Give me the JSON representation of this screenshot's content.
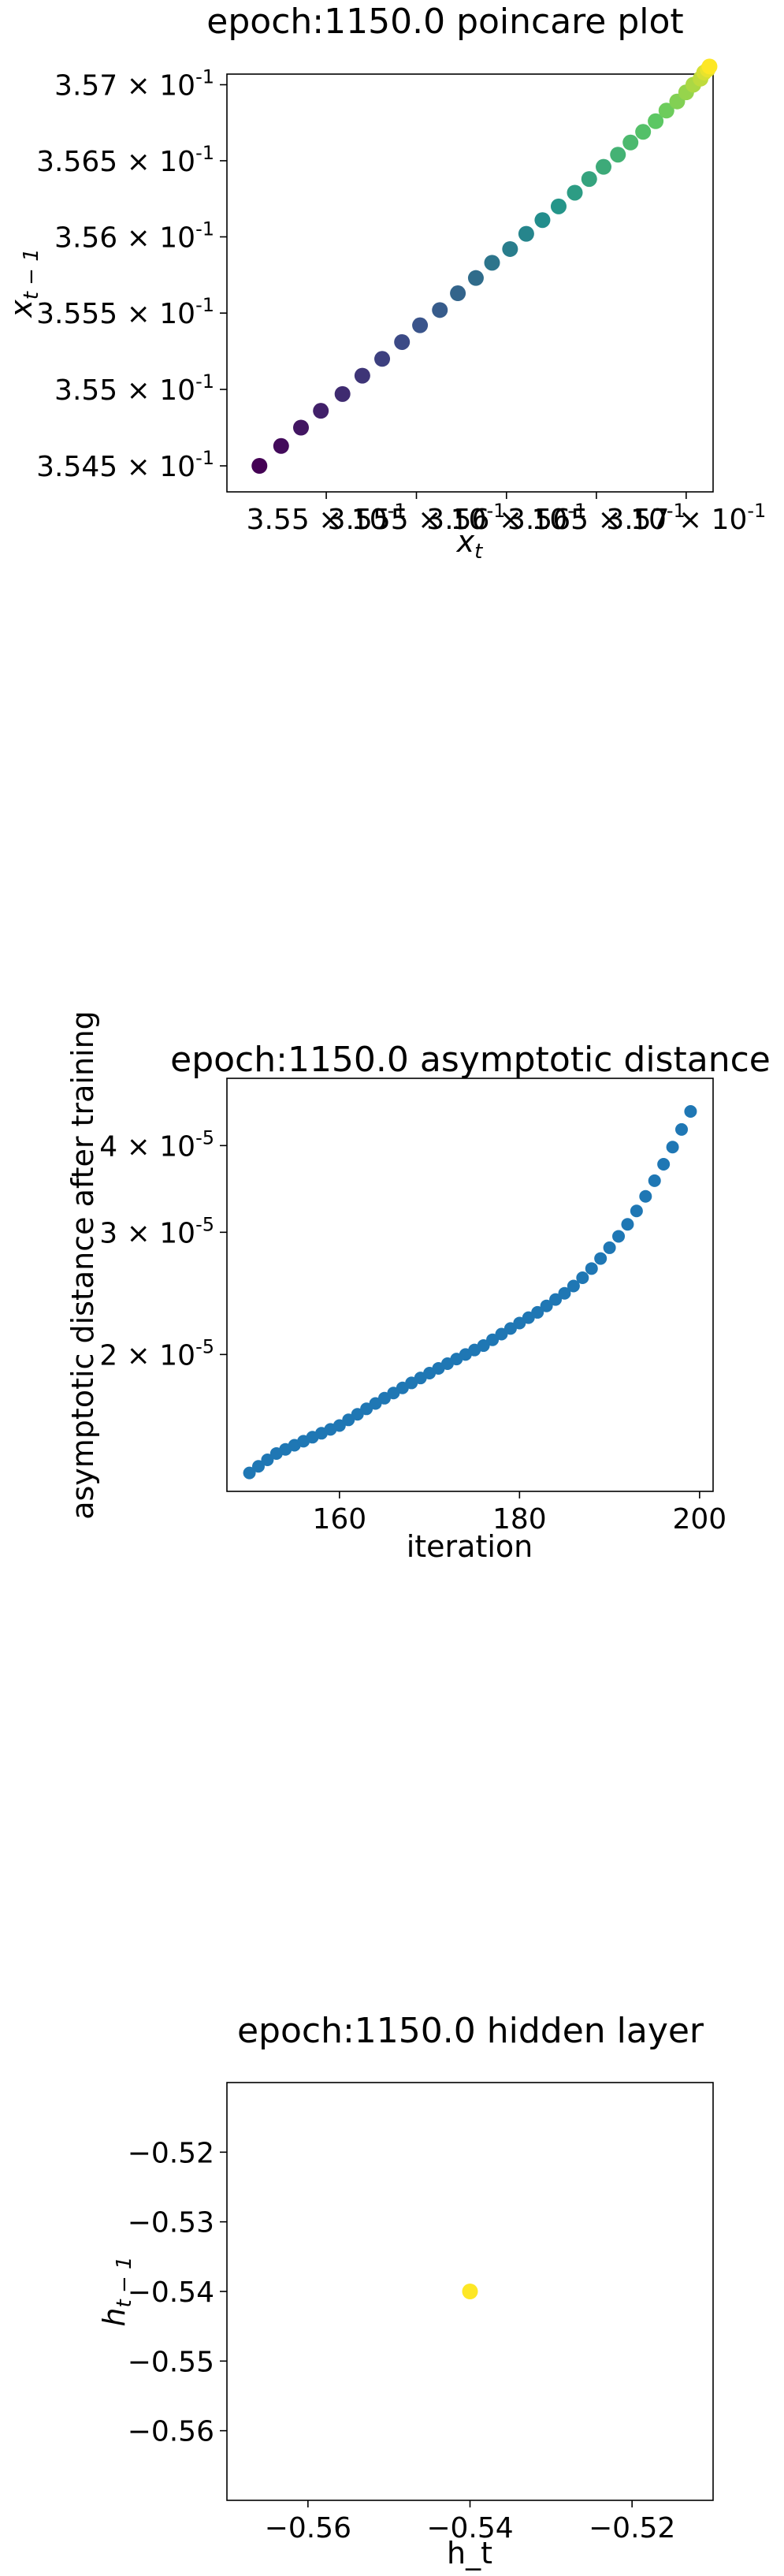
{
  "chart_data": [
    {
      "type": "scatter",
      "title": "epoch:1150.0 poincare plot",
      "xlabel": "x_t",
      "ylabel": "x_{t-1}",
      "scale": "log",
      "colormap": "viridis",
      "xlim": [
        0.35445,
        0.35715
      ],
      "ylim": [
        0.35433,
        0.35707
      ],
      "xticks": [
        {
          "v": 0.355,
          "label": "3.55 × 10^-1"
        },
        {
          "v": 0.3555,
          "label": "3.555 × 10^-1"
        },
        {
          "v": 0.356,
          "label": "3.56 × 10^-1"
        },
        {
          "v": 0.3565,
          "label": "3.565 × 10^-1"
        },
        {
          "v": 0.357,
          "label": "3.57 × 10^-1"
        }
      ],
      "yticks": [
        {
          "v": 0.3545,
          "label": "3.545 × 10^-1"
        },
        {
          "v": 0.355,
          "label": "3.55 × 10^-1"
        },
        {
          "v": 0.3555,
          "label": "3.555 × 10^-1"
        },
        {
          "v": 0.356,
          "label": "3.56 × 10^-1"
        },
        {
          "v": 0.3565,
          "label": "3.565 × 10^-1"
        },
        {
          "v": 0.357,
          "label": "3.57 × 10^-1"
        }
      ],
      "x": [
        0.35463,
        0.35475,
        0.35486,
        0.35497,
        0.35509,
        0.3552,
        0.35531,
        0.35542,
        0.35552,
        0.35563,
        0.35573,
        0.35583,
        0.35592,
        0.35602,
        0.35611,
        0.3562,
        0.35629,
        0.35638,
        0.35646,
        0.35654,
        0.35662,
        0.35669,
        0.35676,
        0.35683,
        0.35689,
        0.35695,
        0.357,
        0.35704,
        0.35708,
        0.3571,
        0.35712,
        0.35713
      ],
      "y": [
        0.3545,
        0.35463,
        0.35475,
        0.35486,
        0.35497,
        0.35509,
        0.3552,
        0.35531,
        0.35542,
        0.35552,
        0.35563,
        0.35573,
        0.35583,
        0.35592,
        0.35602,
        0.35611,
        0.3562,
        0.35629,
        0.35638,
        0.35646,
        0.35654,
        0.35662,
        0.35669,
        0.35676,
        0.35683,
        0.35689,
        0.35695,
        0.357,
        0.35704,
        0.35708,
        0.3571,
        0.35712
      ]
    },
    {
      "type": "scatter",
      "title": "epoch:1150.0 asymptotic distance",
      "xlabel": "iteration",
      "ylabel": "asymptotic distance after training",
      "scale": "log-y",
      "color": "#1f77b4",
      "xlim": [
        147.5,
        201.5
      ],
      "ylim": [
        1.27e-05,
        5e-05
      ],
      "xticks": [
        {
          "v": 160,
          "label": "160"
        },
        {
          "v": 180,
          "label": "180"
        },
        {
          "v": 200,
          "label": "200"
        }
      ],
      "yticks": [
        {
          "v": 2e-05,
          "label": "2 × 10^-5"
        },
        {
          "v": 3e-05,
          "label": "3 × 10^-5"
        },
        {
          "v": 4e-05,
          "label": "4 × 10^-5"
        }
      ],
      "x": [
        150,
        151,
        152,
        153,
        154,
        155,
        156,
        157,
        158,
        159,
        160,
        161,
        162,
        163,
        164,
        165,
        166,
        167,
        168,
        169,
        170,
        171,
        172,
        173,
        174,
        175,
        176,
        177,
        178,
        179,
        180,
        181,
        182,
        183,
        184,
        185,
        186,
        187,
        188,
        189,
        190,
        191,
        192,
        193,
        194,
        195,
        196,
        197,
        198,
        199
      ],
      "y": [
        1.35e-05,
        1.38e-05,
        1.41e-05,
        1.44e-05,
        1.46e-05,
        1.48e-05,
        1.5e-05,
        1.52e-05,
        1.54e-05,
        1.56e-05,
        1.58e-05,
        1.61e-05,
        1.64e-05,
        1.67e-05,
        1.7e-05,
        1.73e-05,
        1.76e-05,
        1.79e-05,
        1.82e-05,
        1.85e-05,
        1.88e-05,
        1.91e-05,
        1.94e-05,
        1.97e-05,
        2e-05,
        2.03e-05,
        2.06e-05,
        2.1e-05,
        2.14e-05,
        2.18e-05,
        2.22e-05,
        2.26e-05,
        2.3e-05,
        2.35e-05,
        2.4e-05,
        2.45e-05,
        2.51e-05,
        2.58e-05,
        2.66e-05,
        2.75e-05,
        2.85e-05,
        2.96e-05,
        3.08e-05,
        3.22e-05,
        3.38e-05,
        3.56e-05,
        3.76e-05,
        3.98e-05,
        4.22e-05,
        4.48e-05
      ]
    },
    {
      "type": "scatter",
      "title": "epoch:1150.0 hidden layer",
      "xlabel": "h_t",
      "ylabel": "h_{t-1}",
      "color": "#fde725",
      "xlim": [
        -0.57,
        -0.51
      ],
      "ylim": [
        -0.57,
        -0.51
      ],
      "xticks": [
        {
          "v": -0.56,
          "label": "−0.56"
        },
        {
          "v": -0.54,
          "label": "−0.54"
        },
        {
          "v": -0.52,
          "label": "−0.52"
        }
      ],
      "yticks": [
        {
          "v": -0.56,
          "label": "−0.56"
        },
        {
          "v": -0.55,
          "label": "−0.55"
        },
        {
          "v": -0.54,
          "label": "−0.54"
        },
        {
          "v": -0.53,
          "label": "−0.53"
        },
        {
          "v": -0.52,
          "label": "−0.52"
        }
      ],
      "x": [
        -0.54
      ],
      "y": [
        -0.54
      ]
    }
  ]
}
